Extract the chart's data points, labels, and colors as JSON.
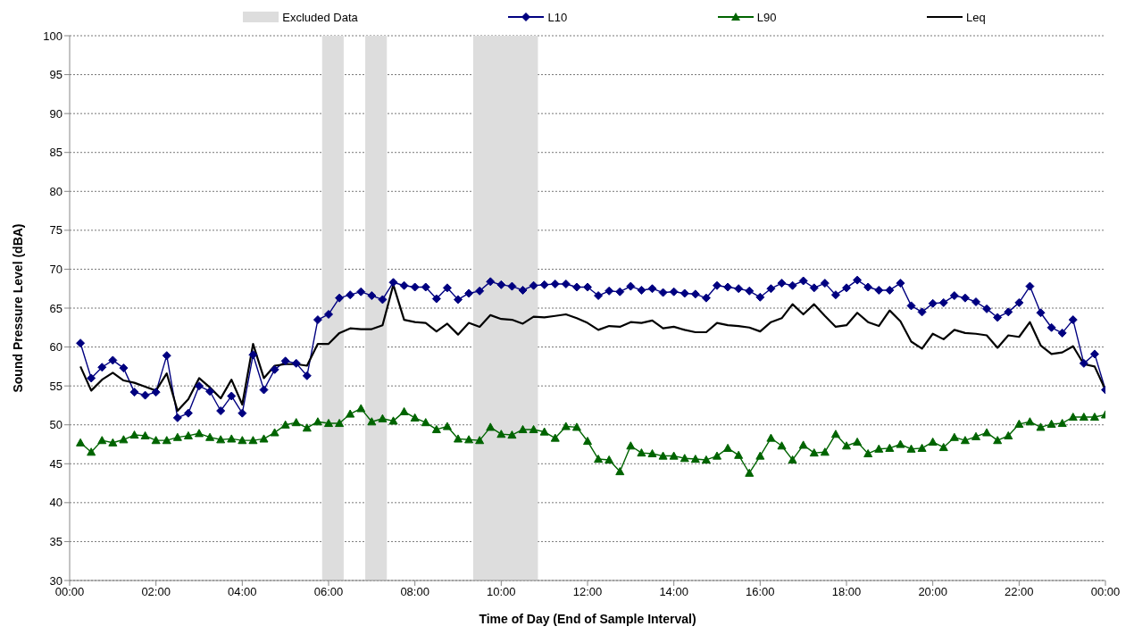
{
  "chart_data": {
    "type": "line",
    "xlabel": "Time of Day (End of Sample Interval)",
    "ylabel": "Sound Pressure Level (dBA)",
    "x": [
      0.25,
      0.5,
      0.75,
      1,
      1.25,
      1.5,
      1.75,
      2,
      2.25,
      2.5,
      2.75,
      3,
      3.25,
      3.5,
      3.75,
      4,
      4.25,
      4.5,
      4.75,
      5,
      5.25,
      5.5,
      5.75,
      6,
      6.25,
      6.5,
      6.75,
      7,
      7.25,
      7.5,
      7.75,
      8,
      8.25,
      8.5,
      8.75,
      9,
      9.25,
      9.5,
      9.75,
      10,
      10.25,
      10.5,
      10.75,
      11,
      11.25,
      11.5,
      11.75,
      12,
      12.25,
      12.5,
      12.75,
      13,
      13.25,
      13.5,
      13.75,
      14,
      14.25,
      14.5,
      14.75,
      15,
      15.25,
      15.5,
      15.75,
      16,
      16.25,
      16.5,
      16.75,
      17,
      17.25,
      17.5,
      17.75,
      18,
      18.25,
      18.5,
      18.75,
      19,
      19.25,
      19.5,
      19.75,
      20,
      20.25,
      20.5,
      20.75,
      21,
      21.25,
      21.5,
      21.75,
      22,
      22.25,
      22.5,
      22.75,
      23,
      23.25,
      23.5,
      23.75,
      24
    ],
    "series": [
      {
        "name": "L10",
        "color": "#000080",
        "marker": "diamond",
        "values": [
          60.5,
          56.0,
          57.4,
          58.3,
          57.3,
          54.2,
          53.8,
          54.2,
          58.9,
          50.9,
          51.5,
          55.0,
          54.3,
          51.8,
          53.7,
          51.5,
          59.0,
          54.5,
          57.1,
          58.2,
          57.9,
          56.3,
          63.5,
          64.2,
          66.3,
          66.7,
          67.1,
          66.6,
          66.1,
          68.3,
          67.9,
          67.7,
          67.7,
          66.2,
          67.6,
          66.1,
          66.9,
          67.2,
          68.4,
          68.0,
          67.8,
          67.3,
          67.9,
          68.0,
          68.1,
          68.1,
          67.7,
          67.7,
          66.6,
          67.2,
          67.1,
          67.8,
          67.3,
          67.5,
          67.0,
          67.1,
          66.9,
          66.8,
          66.3,
          67.9,
          67.7,
          67.5,
          67.2,
          66.4,
          67.5,
          68.2,
          67.9,
          68.5,
          67.6,
          68.2,
          66.7,
          67.6,
          68.6,
          67.7,
          67.3,
          67.3,
          68.2,
          65.3,
          64.5,
          65.6,
          65.7,
          66.6,
          66.3,
          65.8,
          64.9,
          63.8,
          64.5,
          65.7,
          67.8,
          64.4,
          62.5,
          61.8,
          63.5,
          57.9,
          59.1,
          54.5
        ]
      },
      {
        "name": "L90",
        "color": "#006400",
        "marker": "triangle",
        "values": [
          47.7,
          46.5,
          48.0,
          47.7,
          48.1,
          48.7,
          48.6,
          48.0,
          48.0,
          48.4,
          48.6,
          48.9,
          48.4,
          48.1,
          48.2,
          48.0,
          48.0,
          48.2,
          49.0,
          50.0,
          50.3,
          49.6,
          50.4,
          50.2,
          50.2,
          51.4,
          52.1,
          50.4,
          50.8,
          50.5,
          51.7,
          50.9,
          50.3,
          49.4,
          49.8,
          48.2,
          48.1,
          48.0,
          49.7,
          48.8,
          48.7,
          49.4,
          49.4,
          49.1,
          48.3,
          49.8,
          49.7,
          47.9,
          45.6,
          45.5,
          44.0,
          47.3,
          46.4,
          46.3,
          46.0,
          46.0,
          45.7,
          45.6,
          45.5,
          46.0,
          47.0,
          46.1,
          43.8,
          46.0,
          48.3,
          47.3,
          45.5,
          47.4,
          46.4,
          46.5,
          48.8,
          47.3,
          47.8,
          46.3,
          46.9,
          47.0,
          47.5,
          46.9,
          47.0,
          47.8,
          47.1,
          48.4,
          48.0,
          48.5,
          49.0,
          48.0,
          48.6,
          50.1,
          50.4,
          49.7,
          50.1,
          50.2,
          51.0,
          51.0,
          51.0,
          51.3
        ]
      },
      {
        "name": "Leq",
        "color": "#000000",
        "marker": "none",
        "values": [
          57.5,
          54.4,
          55.8,
          56.7,
          55.7,
          55.4,
          54.9,
          54.4,
          56.6,
          51.8,
          53.3,
          56.0,
          54.8,
          53.4,
          55.8,
          52.6,
          60.4,
          56.0,
          57.6,
          57.8,
          57.8,
          57.6,
          60.4,
          60.4,
          61.8,
          62.4,
          62.3,
          62.3,
          62.8,
          68.0,
          63.5,
          63.2,
          63.1,
          62.0,
          63.0,
          61.6,
          63.1,
          62.6,
          64.1,
          63.6,
          63.5,
          63.0,
          63.9,
          63.8,
          64.0,
          64.2,
          63.7,
          63.1,
          62.2,
          62.7,
          62.6,
          63.2,
          63.1,
          63.4,
          62.4,
          62.6,
          62.2,
          61.9,
          61.9,
          63.1,
          62.8,
          62.7,
          62.5,
          62.0,
          63.2,
          63.7,
          65.5,
          64.2,
          65.5,
          64.0,
          62.6,
          62.8,
          64.4,
          63.2,
          62.7,
          64.7,
          63.3,
          60.7,
          59.8,
          61.7,
          61.0,
          62.2,
          61.8,
          61.7,
          61.5,
          59.9,
          61.5,
          61.3,
          63.2,
          60.2,
          59.1,
          59.3,
          60.1,
          57.8,
          57.5,
          54.5
        ]
      }
    ],
    "bands": [
      {
        "axis": "x",
        "from": 5.85,
        "to": 6.35,
        "label": "Excluded Data",
        "color": "#dddddd"
      },
      {
        "axis": "x",
        "from": 6.85,
        "to": 7.35,
        "color": "#dddddd"
      },
      {
        "axis": "x",
        "from": 9.35,
        "to": 10.85,
        "color": "#dddddd"
      }
    ],
    "xlim": [
      0,
      24
    ],
    "xticks": [
      {
        "value": 0,
        "label": "00:00"
      },
      {
        "value": 2,
        "label": "02:00"
      },
      {
        "value": 4,
        "label": "04:00"
      },
      {
        "value": 6,
        "label": "06:00"
      },
      {
        "value": 8,
        "label": "08:00"
      },
      {
        "value": 10,
        "label": "10:00"
      },
      {
        "value": 12,
        "label": "12:00"
      },
      {
        "value": 14,
        "label": "14:00"
      },
      {
        "value": 16,
        "label": "16:00"
      },
      {
        "value": 18,
        "label": "18:00"
      },
      {
        "value": 20,
        "label": "20:00"
      },
      {
        "value": 22,
        "label": "22:00"
      },
      {
        "value": 24,
        "label": "00:00"
      }
    ],
    "ylim": [
      30,
      100
    ],
    "yticks": [
      30,
      35,
      40,
      45,
      50,
      55,
      60,
      65,
      70,
      75,
      80,
      85,
      90,
      95,
      100
    ],
    "grid": "y",
    "legend": "top",
    "line_style": "solid"
  }
}
